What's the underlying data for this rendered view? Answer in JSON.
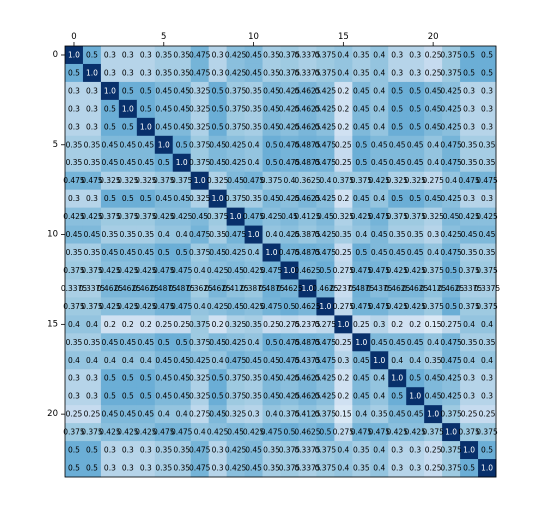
{
  "chart_data": {
    "type": "heatmap",
    "title": "",
    "xlabel": "",
    "ylabel": "",
    "colormap": "Blues",
    "value_range": [
      0,
      1
    ],
    "show_grid": false,
    "show_colorbar": false,
    "x_ticks": [
      0,
      5,
      10,
      15,
      20
    ],
    "y_ticks": [
      0,
      5,
      10,
      15,
      20
    ],
    "x_tick_position": "top",
    "rows": 24,
    "cols": 24,
    "values": [
      [
        1.0,
        0.5,
        0.3,
        0.3,
        0.3,
        0.35,
        0.35,
        0.475,
        0.3,
        0.425,
        0.45,
        0.35,
        0.375,
        0.3375,
        0.375,
        0.4,
        0.35,
        0.4,
        0.3,
        0.3,
        0.25,
        0.375,
        0.5,
        0.5
      ],
      [
        0.5,
        1.0,
        0.3,
        0.3,
        0.3,
        0.35,
        0.35,
        0.475,
        0.3,
        0.425,
        0.45,
        0.35,
        0.375,
        0.3375,
        0.375,
        0.4,
        0.35,
        0.4,
        0.3,
        0.3,
        0.25,
        0.375,
        0.5,
        0.5
      ],
      [
        0.3,
        0.3,
        1.0,
        0.5,
        0.5,
        0.45,
        0.45,
        0.325,
        0.5,
        0.375,
        0.35,
        0.45,
        0.425,
        0.4625,
        0.425,
        0.2,
        0.45,
        0.4,
        0.5,
        0.5,
        0.45,
        0.425,
        0.3,
        0.3
      ],
      [
        0.3,
        0.3,
        0.5,
        1.0,
        0.5,
        0.45,
        0.45,
        0.325,
        0.5,
        0.375,
        0.35,
        0.45,
        0.425,
        0.4625,
        0.425,
        0.2,
        0.45,
        0.4,
        0.5,
        0.5,
        0.45,
        0.425,
        0.3,
        0.3
      ],
      [
        0.3,
        0.3,
        0.5,
        0.5,
        1.0,
        0.45,
        0.45,
        0.325,
        0.5,
        0.375,
        0.35,
        0.45,
        0.425,
        0.4625,
        0.425,
        0.2,
        0.45,
        0.4,
        0.5,
        0.5,
        0.45,
        0.425,
        0.3,
        0.3
      ],
      [
        0.35,
        0.35,
        0.45,
        0.45,
        0.45,
        1.0,
        0.5,
        0.375,
        0.45,
        0.425,
        0.4,
        0.5,
        0.475,
        0.4875,
        0.475,
        0.25,
        0.5,
        0.45,
        0.45,
        0.45,
        0.4,
        0.475,
        0.35,
        0.35
      ],
      [
        0.35,
        0.35,
        0.45,
        0.45,
        0.45,
        0.5,
        1.0,
        0.375,
        0.45,
        0.425,
        0.4,
        0.5,
        0.475,
        0.4875,
        0.475,
        0.25,
        0.5,
        0.45,
        0.45,
        0.45,
        0.4,
        0.475,
        0.35,
        0.35
      ],
      [
        0.475,
        0.475,
        0.325,
        0.325,
        0.325,
        0.375,
        0.375,
        1.0,
        0.325,
        0.45,
        0.475,
        0.375,
        0.4,
        0.3625,
        0.4,
        0.375,
        0.375,
        0.425,
        0.325,
        0.325,
        0.275,
        0.4,
        0.475,
        0.475
      ],
      [
        0.3,
        0.3,
        0.5,
        0.5,
        0.5,
        0.45,
        0.45,
        0.325,
        1.0,
        0.375,
        0.35,
        0.45,
        0.425,
        0.4625,
        0.425,
        0.2,
        0.45,
        0.4,
        0.5,
        0.5,
        0.45,
        0.425,
        0.3,
        0.3
      ],
      [
        0.425,
        0.425,
        0.375,
        0.375,
        0.375,
        0.425,
        0.425,
        0.45,
        0.375,
        1.0,
        0.475,
        0.425,
        0.45,
        0.4125,
        0.45,
        0.325,
        0.425,
        0.475,
        0.375,
        0.375,
        0.325,
        0.45,
        0.425,
        0.425
      ],
      [
        0.45,
        0.45,
        0.35,
        0.35,
        0.35,
        0.4,
        0.4,
        0.475,
        0.35,
        0.475,
        1.0,
        0.4,
        0.425,
        0.3875,
        0.425,
        0.35,
        0.4,
        0.45,
        0.35,
        0.35,
        0.3,
        0.425,
        0.45,
        0.45
      ],
      [
        0.35,
        0.35,
        0.45,
        0.45,
        0.45,
        0.5,
        0.5,
        0.375,
        0.45,
        0.425,
        0.4,
        1.0,
        0.475,
        0.4875,
        0.475,
        0.25,
        0.5,
        0.45,
        0.45,
        0.45,
        0.4,
        0.475,
        0.35,
        0.35
      ],
      [
        0.375,
        0.375,
        0.425,
        0.425,
        0.425,
        0.475,
        0.475,
        0.4,
        0.425,
        0.45,
        0.425,
        0.475,
        1.0,
        0.4625,
        0.5,
        0.275,
        0.475,
        0.475,
        0.425,
        0.425,
        0.375,
        0.5,
        0.375,
        0.375
      ],
      [
        0.3375,
        0.3375,
        0.4625,
        0.4625,
        0.4625,
        0.4875,
        0.4875,
        0.3625,
        0.4625,
        0.4125,
        0.3875,
        0.4875,
        0.4625,
        1.0,
        0.4625,
        0.2375,
        0.4875,
        0.4375,
        0.4625,
        0.4625,
        0.4125,
        0.4625,
        0.3375,
        0.3375
      ],
      [
        0.375,
        0.375,
        0.425,
        0.425,
        0.425,
        0.475,
        0.475,
        0.4,
        0.425,
        0.45,
        0.425,
        0.475,
        0.5,
        0.4625,
        1.0,
        0.275,
        0.475,
        0.475,
        0.425,
        0.425,
        0.375,
        0.5,
        0.375,
        0.375
      ],
      [
        0.4,
        0.4,
        0.2,
        0.2,
        0.2,
        0.25,
        0.25,
        0.375,
        0.2,
        0.325,
        0.35,
        0.25,
        0.275,
        0.2375,
        0.275,
        1.0,
        0.25,
        0.3,
        0.2,
        0.2,
        0.15,
        0.275,
        0.4,
        0.4
      ],
      [
        0.35,
        0.35,
        0.45,
        0.45,
        0.45,
        0.5,
        0.5,
        0.375,
        0.45,
        0.425,
        0.4,
        0.5,
        0.475,
        0.4875,
        0.475,
        0.25,
        1.0,
        0.45,
        0.45,
        0.45,
        0.4,
        0.475,
        0.35,
        0.35
      ],
      [
        0.4,
        0.4,
        0.4,
        0.4,
        0.4,
        0.45,
        0.45,
        0.425,
        0.4,
        0.475,
        0.45,
        0.45,
        0.475,
        0.4375,
        0.475,
        0.3,
        0.45,
        1.0,
        0.4,
        0.4,
        0.35,
        0.475,
        0.4,
        0.4
      ],
      [
        0.3,
        0.3,
        0.5,
        0.5,
        0.5,
        0.45,
        0.45,
        0.325,
        0.5,
        0.375,
        0.35,
        0.45,
        0.425,
        0.4625,
        0.425,
        0.2,
        0.45,
        0.4,
        1.0,
        0.5,
        0.45,
        0.425,
        0.3,
        0.3
      ],
      [
        0.3,
        0.3,
        0.5,
        0.5,
        0.5,
        0.45,
        0.45,
        0.325,
        0.5,
        0.375,
        0.35,
        0.45,
        0.425,
        0.4625,
        0.425,
        0.2,
        0.45,
        0.4,
        0.5,
        1.0,
        0.45,
        0.425,
        0.3,
        0.3
      ],
      [
        0.25,
        0.25,
        0.45,
        0.45,
        0.45,
        0.4,
        0.4,
        0.275,
        0.45,
        0.325,
        0.3,
        0.4,
        0.375,
        0.4125,
        0.375,
        0.15,
        0.4,
        0.35,
        0.45,
        0.45,
        1.0,
        0.375,
        0.25,
        0.25
      ],
      [
        0.375,
        0.375,
        0.425,
        0.425,
        0.425,
        0.475,
        0.475,
        0.4,
        0.425,
        0.45,
        0.425,
        0.475,
        0.5,
        0.4625,
        0.5,
        0.275,
        0.475,
        0.475,
        0.425,
        0.425,
        0.375,
        1.0,
        0.375,
        0.375
      ],
      [
        0.5,
        0.5,
        0.3,
        0.3,
        0.3,
        0.35,
        0.35,
        0.475,
        0.3,
        0.425,
        0.45,
        0.35,
        0.375,
        0.3375,
        0.375,
        0.4,
        0.35,
        0.4,
        0.3,
        0.3,
        0.25,
        0.375,
        1.0,
        0.5
      ],
      [
        0.5,
        0.5,
        0.3,
        0.3,
        0.3,
        0.35,
        0.35,
        0.475,
        0.3,
        0.425,
        0.45,
        0.35,
        0.375,
        0.3375,
        0.375,
        0.4,
        0.35,
        0.4,
        0.3,
        0.3,
        0.25,
        0.375,
        0.5,
        1.0
      ]
    ]
  }
}
